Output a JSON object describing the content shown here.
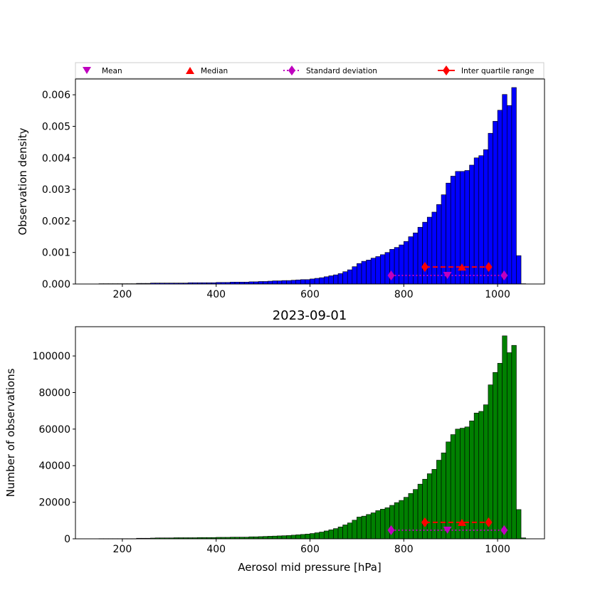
{
  "figure_title": "2023-09-01",
  "legend": [
    {
      "label": "Mean",
      "marker": "triangle-down",
      "color": "#bf00bf",
      "line": "none"
    },
    {
      "label": "Median",
      "marker": "triangle-up",
      "color": "#ff0000",
      "line": "none"
    },
    {
      "label": "Standard deviation",
      "marker": "diamond",
      "color": "#bf00bf",
      "line": "dotted"
    },
    {
      "label": "Inter quartile range",
      "marker": "diamond",
      "color": "#ff0000",
      "line": "solid"
    }
  ],
  "colors": {
    "density_bars": "#0000ff",
    "count_bars": "#008000",
    "mean": "#bf00bf",
    "median": "#ff0000",
    "std": "#bf00bf",
    "iqr": "#ff0000"
  },
  "chart_data": [
    {
      "type": "bar",
      "xlabel": "",
      "ylabel": "Observation density",
      "xlim": [
        100,
        1100
      ],
      "ylim": [
        0,
        0.0065
      ],
      "xticks": [
        200,
        400,
        600,
        800,
        1000
      ],
      "yticks": [
        0.0,
        0.001,
        0.002,
        0.003,
        0.004,
        0.005,
        0.006
      ],
      "ytick_labels": [
        "0.000",
        "0.001",
        "0.002",
        "0.003",
        "0.004",
        "0.005",
        "0.006"
      ],
      "bin_start": 150,
      "bin_width": 10,
      "values": [
        1e-05,
        1e-05,
        1e-05,
        1e-05,
        1e-05,
        1e-05,
        1e-05,
        1e-05,
        2e-05,
        2e-05,
        2e-05,
        3e-05,
        3e-05,
        3e-05,
        3e-05,
        3e-05,
        3e-05,
        3e-05,
        3e-05,
        4e-05,
        4e-05,
        4e-05,
        4e-05,
        4e-05,
        4e-05,
        5e-05,
        5e-05,
        5e-05,
        6e-05,
        6e-05,
        6e-05,
        6e-05,
        7e-05,
        7e-05,
        8e-05,
        8e-05,
        9e-05,
        0.0001,
        0.0001,
        0.00011,
        0.00011,
        0.00012,
        0.00013,
        0.00014,
        0.00014,
        0.00016,
        0.00018,
        0.0002,
        0.00023,
        0.00026,
        0.00029,
        0.00033,
        0.00039,
        0.00045,
        0.00055,
        0.00065,
        0.00072,
        0.00076,
        0.00082,
        0.00087,
        0.00093,
        0.001,
        0.0011,
        0.00116,
        0.00124,
        0.00135,
        0.0015,
        0.00162,
        0.0018,
        0.00196,
        0.00212,
        0.00228,
        0.00252,
        0.00283,
        0.0032,
        0.00342,
        0.00357,
        0.00357,
        0.0036,
        0.00377,
        0.004,
        0.00407,
        0.00426,
        0.00478,
        0.00516,
        0.00551,
        0.00601,
        0.00566,
        0.00623,
        0.0009,
        1e-05
      ],
      "stats": {
        "mean": {
          "x": 893,
          "y": 0.00027
        },
        "median": {
          "x": 924,
          "y": 0.00054
        },
        "std": {
          "x": [
            773,
            1014
          ],
          "y": 0.00027
        },
        "iqr": {
          "x": [
            845,
            981
          ],
          "y": 0.00054
        }
      }
    },
    {
      "type": "bar",
      "xlabel": "Aerosol mid pressure [hPa]",
      "ylabel": "Number of observations",
      "xlim": [
        100,
        1100
      ],
      "ylim": [
        0,
        116000
      ],
      "xticks": [
        200,
        400,
        600,
        800,
        1000
      ],
      "yticks": [
        0,
        20000,
        40000,
        60000,
        80000,
        100000
      ],
      "ytick_labels": [
        "0",
        "20000",
        "40000",
        "60000",
        "80000",
        "100000"
      ],
      "bin_start": 150,
      "bin_width": 10,
      "values": [
        100,
        100,
        100,
        100,
        100,
        100,
        100,
        100,
        300,
        300,
        300,
        400,
        500,
        500,
        500,
        500,
        600,
        600,
        600,
        600,
        600,
        700,
        700,
        700,
        700,
        800,
        800,
        800,
        900,
        900,
        900,
        900,
        1100,
        1100,
        1200,
        1300,
        1400,
        1500,
        1600,
        1700,
        1800,
        2000,
        2200,
        2400,
        2600,
        2900,
        3300,
        3700,
        4300,
        4900,
        5600,
        6500,
        7600,
        8700,
        10200,
        11900,
        12400,
        13300,
        14200,
        15400,
        16200,
        17000,
        18300,
        19800,
        21000,
        22700,
        24800,
        27000,
        29900,
        32600,
        35600,
        38000,
        43000,
        47000,
        53000,
        57000,
        60000,
        60500,
        61200,
        64500,
        68800,
        69700,
        73300,
        84200,
        91000,
        96000,
        111000,
        101800,
        105800,
        16000,
        500
      ],
      "stats": {
        "mean": {
          "x": 893,
          "y": 4700
        },
        "median": {
          "x": 924,
          "y": 9000
        },
        "std": {
          "x": [
            773,
            1014
          ],
          "y": 4700
        },
        "iqr": {
          "x": [
            845,
            981
          ],
          "y": 9000
        }
      }
    }
  ]
}
